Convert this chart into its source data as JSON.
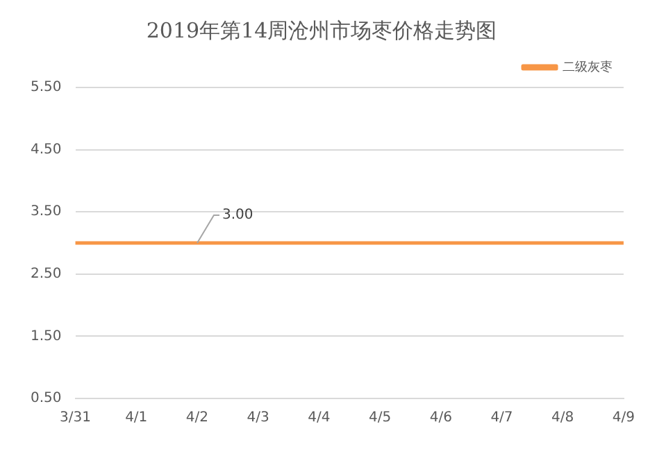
{
  "chart_data": {
    "type": "line",
    "title": "2019年第14周沧州市场枣价格走势图",
    "categories": [
      "3/31",
      "4/1",
      "4/2",
      "4/3",
      "4/4",
      "4/5",
      "4/6",
      "4/7",
      "4/8",
      "4/9"
    ],
    "series": [
      {
        "name": "二级灰枣",
        "color": "#f79646",
        "values": [
          3,
          3,
          3,
          3,
          3,
          3,
          3,
          3,
          3,
          3
        ]
      }
    ],
    "ylim": [
      0.5,
      5.5
    ],
    "yticks": [
      {
        "value": 0.5,
        "label": "0.50"
      },
      {
        "value": 1.5,
        "label": "1.50"
      },
      {
        "value": 2.5,
        "label": "2.50"
      },
      {
        "value": 3.5,
        "label": "3.50"
      },
      {
        "value": 4.5,
        "label": "4.50"
      },
      {
        "value": 5.5,
        "label": "5.50"
      }
    ],
    "grid": "y",
    "legend": "top right",
    "marker": "none",
    "line_style": "solid",
    "annotations": [
      {
        "text": "3.00",
        "x": "4/2",
        "y": 3
      }
    ]
  }
}
